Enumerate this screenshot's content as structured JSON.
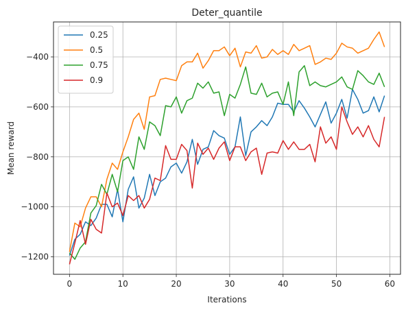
{
  "chart_data": {
    "type": "line",
    "title": "Deter_quantile",
    "xlabel": "Iterations",
    "ylabel": "Mean reward",
    "xlim": [
      -3,
      62
    ],
    "ylim": [
      -1270,
      -260
    ],
    "x_ticks": [
      0,
      10,
      20,
      30,
      40,
      50,
      60
    ],
    "y_ticks": [
      -1200,
      -1000,
      -800,
      -600,
      -400
    ],
    "x_tick_labels": [
      "0",
      "10",
      "20",
      "30",
      "40",
      "50",
      "60"
    ],
    "y_tick_labels": [
      "−1200",
      "−1000",
      "−800",
      "−600",
      "−400"
    ],
    "grid": true,
    "legend_position": "top-left",
    "x": [
      0,
      1,
      2,
      3,
      4,
      5,
      6,
      7,
      8,
      9,
      10,
      11,
      12,
      13,
      14,
      15,
      16,
      17,
      18,
      19,
      20,
      21,
      22,
      23,
      24,
      25,
      26,
      27,
      28,
      29,
      30,
      31,
      32,
      33,
      34,
      35,
      36,
      37,
      38,
      39,
      40,
      41,
      42,
      43,
      44,
      45,
      46,
      47,
      48,
      49,
      50,
      51,
      52,
      53,
      54,
      55,
      56,
      57,
      58,
      59
    ],
    "series": [
      {
        "name": "0.25",
        "color": "#1f77b4",
        "values": [
          -1195,
          -1130,
          -1110,
          -1060,
          -1075,
          -1045,
          -990,
          -990,
          -1040,
          -930,
          -1060,
          -930,
          -880,
          -1005,
          -965,
          -870,
          -955,
          -900,
          -885,
          -840,
          -825,
          -865,
          -820,
          -730,
          -830,
          -770,
          -760,
          -695,
          -715,
          -725,
          -790,
          -760,
          -640,
          -795,
          -700,
          -680,
          -655,
          -675,
          -640,
          -585,
          -590,
          -590,
          -620,
          -575,
          -605,
          -640,
          -680,
          -630,
          -580,
          -665,
          -625,
          -570,
          -645,
          -530,
          -570,
          -625,
          -615,
          -560,
          -620,
          -555
        ]
      },
      {
        "name": "0.5",
        "color": "#ff7f0e",
        "values": [
          -1180,
          -1065,
          -1080,
          -1005,
          -960,
          -960,
          -1000,
          -890,
          -825,
          -850,
          -780,
          -720,
          -650,
          -625,
          -690,
          -560,
          -555,
          -490,
          -485,
          -490,
          -495,
          -435,
          -420,
          -420,
          -385,
          -445,
          -415,
          -375,
          -375,
          -360,
          -395,
          -365,
          -440,
          -380,
          -385,
          -355,
          -405,
          -400,
          -370,
          -390,
          -375,
          -390,
          -350,
          -375,
          -365,
          -355,
          -430,
          -420,
          -405,
          -410,
          -385,
          -345,
          -360,
          -365,
          -385,
          -375,
          -365,
          -330,
          -300,
          -360
        ]
      },
      {
        "name": "0.75",
        "color": "#2ca02c",
        "values": [
          -1185,
          -1210,
          -1165,
          -1140,
          -1025,
          -995,
          -910,
          -950,
          -870,
          -940,
          -815,
          -800,
          -850,
          -720,
          -770,
          -660,
          -675,
          -715,
          -595,
          -600,
          -560,
          -625,
          -575,
          -565,
          -505,
          -525,
          -500,
          -545,
          -540,
          -635,
          -550,
          -565,
          -510,
          -440,
          -545,
          -550,
          -505,
          -560,
          -545,
          -540,
          -590,
          -500,
          -635,
          -460,
          -435,
          -515,
          -500,
          -515,
          -520,
          -510,
          -500,
          -480,
          -520,
          -530,
          -455,
          -475,
          -500,
          -510,
          -465,
          -520
        ]
      },
      {
        "name": "0.9",
        "color": "#d62728",
        "values": [
          -1230,
          -1145,
          -1055,
          -1150,
          -1050,
          -1090,
          -1105,
          -945,
          -1000,
          -985,
          -1035,
          -955,
          -975,
          -955,
          -1005,
          -970,
          -885,
          -895,
          -755,
          -810,
          -810,
          -750,
          -775,
          -925,
          -745,
          -790,
          -765,
          -810,
          -765,
          -740,
          -815,
          -760,
          -760,
          -815,
          -780,
          -765,
          -870,
          -785,
          -780,
          -785,
          -735,
          -770,
          -740,
          -770,
          -770,
          -750,
          -820,
          -680,
          -745,
          -720,
          -770,
          -600,
          -660,
          -710,
          -680,
          -720,
          -675,
          -730,
          -760,
          -640
        ]
      }
    ]
  }
}
